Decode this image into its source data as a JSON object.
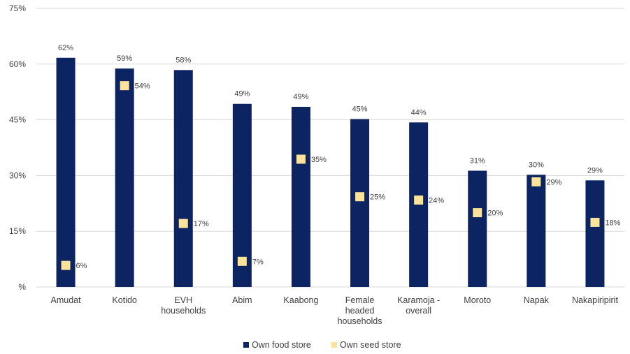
{
  "chart_data": {
    "type": "bar",
    "categories": [
      [
        "Amudat"
      ],
      [
        "Kotido"
      ],
      [
        "EVH",
        "households"
      ],
      [
        "Abim"
      ],
      [
        "Kaabong"
      ],
      [
        "Female",
        "headed",
        "households"
      ],
      [
        "Karamoja -",
        "overall"
      ],
      [
        "Moroto"
      ],
      [
        "Napak"
      ],
      [
        "Nakapiripirit"
      ]
    ],
    "series": [
      {
        "name": "Own food store",
        "marker": "bar",
        "color": "#0c2461",
        "values": [
          62,
          59,
          58,
          49,
          49,
          45,
          44,
          31,
          30,
          29
        ],
        "value_positions": [
          61.7,
          58.8,
          58.4,
          49.3,
          48.5,
          45.2,
          44.3,
          31.3,
          30.2,
          28.7
        ],
        "labels": [
          "62%",
          "59%",
          "58%",
          "49%",
          "49%",
          "45%",
          "44%",
          "31%",
          "30%",
          "29%"
        ]
      },
      {
        "name": "Own seed store",
        "marker": "square",
        "color": "#fbe39b",
        "values": [
          6,
          54,
          17,
          7,
          35,
          25,
          24,
          20,
          29,
          18
        ],
        "value_positions": [
          5.8,
          54.2,
          17.1,
          6.9,
          34.4,
          24.3,
          23.4,
          20.0,
          28.3,
          17.4
        ],
        "labels": [
          "6%",
          "54%",
          "17%",
          "7%",
          "35%",
          "25%",
          "24%",
          "20%",
          "29%",
          "18%"
        ]
      }
    ],
    "y_ticks": [
      {
        "value": 0,
        "label": "%"
      },
      {
        "value": 15,
        "label": "15%"
      },
      {
        "value": 30,
        "label": "30%"
      },
      {
        "value": 45,
        "label": "45%"
      },
      {
        "value": 60,
        "label": "60%"
      },
      {
        "value": 75,
        "label": "75%"
      }
    ],
    "ylim": [
      0,
      75
    ],
    "grid": true,
    "legend_position": "bottom-center",
    "gridline_color": "#d9d9d9",
    "text_color": "#404040"
  }
}
